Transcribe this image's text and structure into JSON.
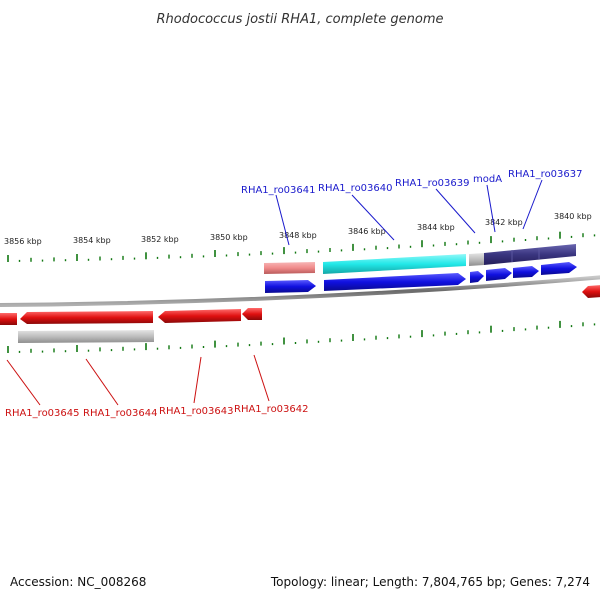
{
  "title": "Rhodococcus jostii RHA1, complete genome",
  "footer": {
    "accession": "Accession: NC_008268",
    "summary": "Topology: linear; Length: 7,804,765 bp; Genes: 7,274"
  },
  "kbp_labels": [
    "3856 kbp",
    "3854 kbp",
    "3852 kbp",
    "3850 kbp",
    "3848 kbp",
    "3846 kbp",
    "3844 kbp",
    "3842 kbp",
    "3840 kbp"
  ],
  "forward_genes": [
    "RHA1_ro03641",
    "RHA1_ro03640",
    "RHA1_ro03639",
    "modA",
    "RHA1_ro03637"
  ],
  "reverse_genes": [
    "RHA1_ro03645",
    "RHA1_ro03644",
    "RHA1_ro03643",
    "RHA1_ro03642"
  ],
  "colors": {
    "forward_cds": "#1010e0",
    "reverse_cds": "#e01010",
    "tick": "#117711",
    "backbone": "#777777",
    "feature_pink": "#f08a8a",
    "feature_cyan": "#22e8e8",
    "feature_navy": "#3a3580",
    "feature_gray": "#bdbdbd",
    "label_forward": "#1a1acc",
    "label_reverse": "#cc1111"
  }
}
